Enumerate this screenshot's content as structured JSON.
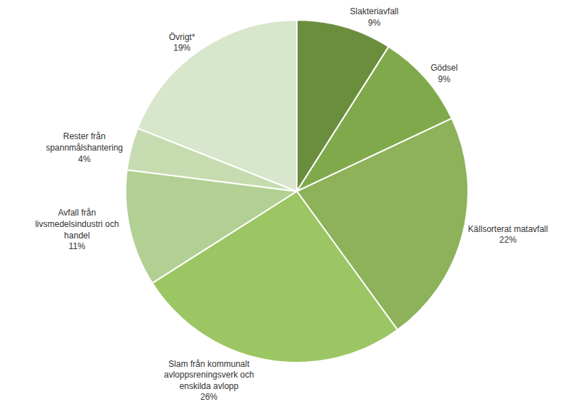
{
  "chart_data": {
    "type": "pie",
    "categories": [
      "Slakteriavfall",
      "Gödsel",
      "Källsorterat matavfall",
      "Slam från kommunalt avloppsreningsverk och enskilda avlopp",
      "Avfall från livsmedelsindustri och handel",
      "Rester från spannmålshantering",
      "Övrigt*"
    ],
    "values": [
      9,
      9,
      22,
      26,
      11,
      4,
      19
    ],
    "value_labels": [
      "9%",
      "9%",
      "22%",
      "26%",
      "11%",
      "4%",
      "19%"
    ],
    "colors": [
      "#6b8e3e",
      "#80a94c",
      "#8db25a",
      "#9cc563",
      "#b3d094",
      "#c6dcb0",
      "#d8e6cc"
    ],
    "data_labels": true
  }
}
